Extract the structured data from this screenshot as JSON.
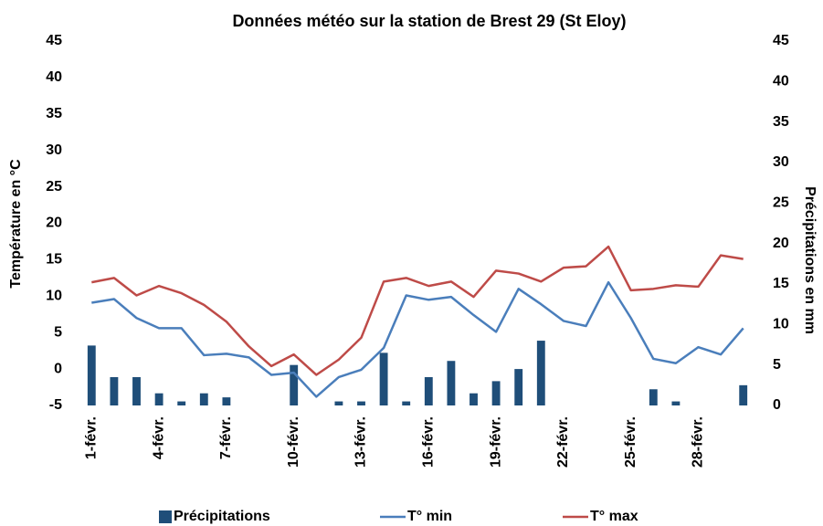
{
  "chart_data": {
    "type": "bar-line",
    "title": "Données météo sur la station de Brest 29 (St Eloy)",
    "ylabel": "Température en °C",
    "y2label": "Précipitations en mm",
    "categories": [
      "1-févr.",
      null,
      null,
      "4-févr.",
      null,
      null,
      "7-févr.",
      null,
      null,
      "10-févr.",
      null,
      null,
      "13-févr.",
      null,
      null,
      "16-févr.",
      null,
      null,
      "19-févr.",
      null,
      null,
      "22-févr.",
      null,
      null,
      "25-févr.",
      null,
      null,
      "28-févr.",
      null,
      null
    ],
    "series": [
      {
        "name": "Précipitations",
        "type": "bar",
        "axis": "y2",
        "color": "#1f4e79",
        "values": [
          7.4,
          3.5,
          3.5,
          1.5,
          0.5,
          1.5,
          1.0,
          0,
          0,
          5.0,
          0,
          0.5,
          0.5,
          6.5,
          0.5,
          3.5,
          5.5,
          1.5,
          3.0,
          4.5,
          8.0,
          0,
          0,
          0,
          0,
          2.0,
          0.5,
          0,
          0,
          2.5
        ]
      },
      {
        "name": "T° min",
        "type": "line",
        "color": "#4a7ebb",
        "values": [
          9.1,
          9.6,
          7.0,
          5.6,
          5.6,
          1.9,
          2.1,
          1.6,
          -0.8,
          -0.5,
          -3.8,
          -1.1,
          -0.1,
          2.9,
          10.1,
          9.5,
          9.9,
          7.4,
          5.1,
          11.0,
          8.9,
          6.6,
          5.9,
          11.9,
          7.0,
          1.4,
          0.8,
          3.0,
          2.0,
          5.6
        ]
      },
      {
        "name": "T° max",
        "type": "line",
        "color": "#be4b48",
        "values": [
          11.9,
          12.5,
          10.1,
          11.4,
          10.4,
          8.8,
          6.5,
          3.1,
          0.4,
          2.0,
          -0.8,
          1.3,
          4.3,
          12.0,
          12.5,
          11.4,
          12.0,
          9.9,
          13.5,
          13.1,
          12.0,
          13.9,
          14.1,
          16.8,
          10.8,
          11.0,
          11.5,
          11.3,
          15.6,
          15.1
        ]
      }
    ],
    "ylim": [
      -5,
      45
    ],
    "yticks": [
      -5,
      0,
      5,
      10,
      15,
      20,
      25,
      30,
      35,
      40,
      45
    ],
    "y2lim": [
      0,
      45
    ],
    "y2ticks": [
      0,
      5,
      10,
      15,
      20,
      25,
      30,
      35,
      40,
      45
    ],
    "grid": false,
    "legend": "bottom"
  }
}
